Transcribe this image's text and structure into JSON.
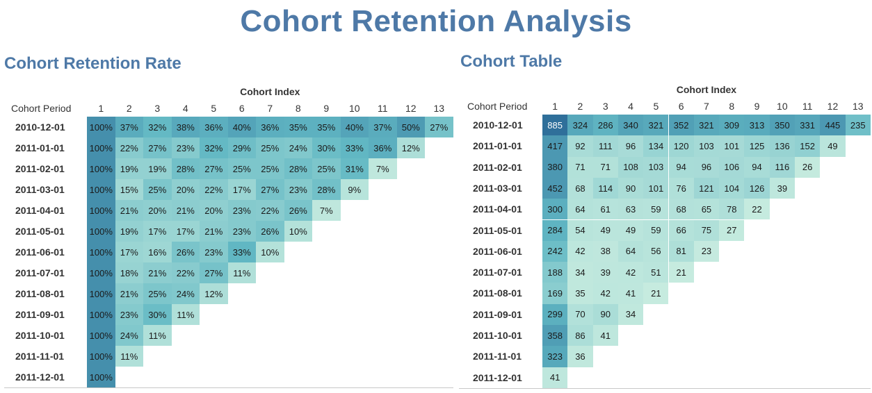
{
  "title": "Cohort Retention Analysis",
  "chart_data": [
    {
      "type": "heatmap",
      "title": "Cohort Retention Rate",
      "xlabel": "Cohort Index",
      "ylabel": "Cohort Period",
      "columns": [
        "1",
        "2",
        "3",
        "4",
        "5",
        "6",
        "7",
        "8",
        "9",
        "10",
        "11",
        "12",
        "13"
      ],
      "rows": [
        "2010-12-01",
        "2011-01-01",
        "2011-02-01",
        "2011-03-01",
        "2011-04-01",
        "2011-05-01",
        "2011-06-01",
        "2011-07-01",
        "2011-08-01",
        "2011-09-01",
        "2011-10-01",
        "2011-11-01",
        "2011-12-01"
      ],
      "values": [
        [
          "100%",
          "37%",
          "32%",
          "38%",
          "36%",
          "40%",
          "36%",
          "35%",
          "35%",
          "40%",
          "37%",
          "50%",
          "27%"
        ],
        [
          "100%",
          "22%",
          "27%",
          "23%",
          "32%",
          "29%",
          "25%",
          "24%",
          "30%",
          "33%",
          "36%",
          "12%"
        ],
        [
          "100%",
          "19%",
          "19%",
          "28%",
          "27%",
          "25%",
          "25%",
          "28%",
          "25%",
          "31%",
          "7%"
        ],
        [
          "100%",
          "15%",
          "25%",
          "20%",
          "22%",
          "17%",
          "27%",
          "23%",
          "28%",
          "9%"
        ],
        [
          "100%",
          "21%",
          "20%",
          "21%",
          "20%",
          "23%",
          "22%",
          "26%",
          "7%"
        ],
        [
          "100%",
          "19%",
          "17%",
          "17%",
          "21%",
          "23%",
          "26%",
          "10%"
        ],
        [
          "100%",
          "17%",
          "16%",
          "26%",
          "23%",
          "33%",
          "10%"
        ],
        [
          "100%",
          "18%",
          "21%",
          "22%",
          "27%",
          "11%"
        ],
        [
          "100%",
          "21%",
          "25%",
          "24%",
          "12%"
        ],
        [
          "100%",
          "23%",
          "30%",
          "11%"
        ],
        [
          "100%",
          "24%",
          "11%"
        ],
        [
          "100%",
          "11%"
        ],
        [
          "100%"
        ]
      ],
      "grid": false
    },
    {
      "type": "heatmap",
      "title": "Cohort Table",
      "xlabel": "Cohort Index",
      "ylabel": "Cohort Period",
      "columns": [
        "1",
        "2",
        "3",
        "4",
        "5",
        "6",
        "7",
        "8",
        "9",
        "10",
        "11",
        "12",
        "13"
      ],
      "rows": [
        "2010-12-01",
        "2011-01-01",
        "2011-02-01",
        "2011-03-01",
        "2011-04-01",
        "2011-05-01",
        "2011-06-01",
        "2011-07-01",
        "2011-08-01",
        "2011-09-01",
        "2011-10-01",
        "2011-11-01",
        "2011-12-01"
      ],
      "values": [
        [
          885,
          324,
          286,
          340,
          321,
          352,
          321,
          309,
          313,
          350,
          331,
          445,
          235
        ],
        [
          417,
          92,
          111,
          96,
          134,
          120,
          103,
          101,
          125,
          136,
          152,
          49
        ],
        [
          380,
          71,
          71,
          108,
          103,
          94,
          96,
          106,
          94,
          116,
          26
        ],
        [
          452,
          68,
          114,
          90,
          101,
          76,
          121,
          104,
          126,
          39
        ],
        [
          300,
          64,
          61,
          63,
          59,
          68,
          65,
          78,
          22
        ],
        [
          284,
          54,
          49,
          49,
          59,
          66,
          75,
          27
        ],
        [
          242,
          42,
          38,
          64,
          56,
          81,
          23
        ],
        [
          188,
          34,
          39,
          42,
          51,
          21
        ],
        [
          169,
          35,
          42,
          41,
          21
        ],
        [
          299,
          70,
          90,
          34
        ],
        [
          358,
          86,
          41
        ],
        [
          323,
          36
        ],
        [
          41
        ]
      ],
      "grid": false
    }
  ],
  "colors": {
    "title": "#4e79a7",
    "scale_low": "#c6ebdf",
    "scale_mid": "#62b8c4",
    "scale_high": "#2f6f9a"
  }
}
